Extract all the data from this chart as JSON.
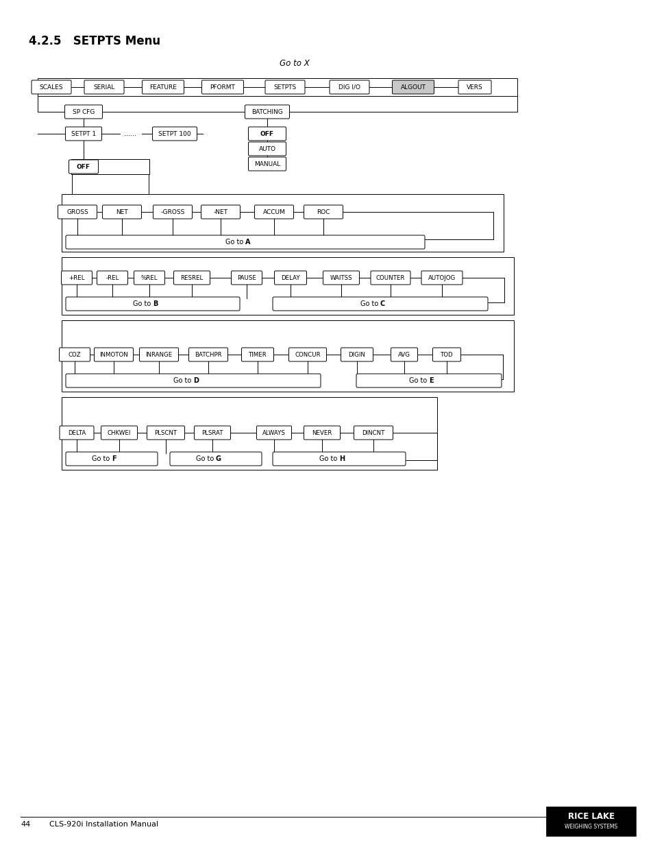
{
  "title": "4.2.5   SETPTS Menu",
  "goto_x_label": "Go to X",
  "bg_color": "#ffffff",
  "title_fontsize": 12,
  "row1_items": [
    "SCALES",
    "SERIAL",
    "FEATURE",
    "PFORMT",
    "SETPTS",
    "DIG I/O",
    "ALGOUT",
    "VERS"
  ],
  "row1_highlight": "ALGOUT",
  "batching_sub": [
    "OFF",
    "AUTO",
    "MANUAL"
  ],
  "row_gross": [
    "GROSS",
    "NET",
    "-GROSS",
    "-NET",
    "ACCUM",
    "ROC"
  ],
  "row_rel": [
    "+REL",
    "-REL",
    "%REL",
    "RESREL",
    "PAUSE",
    "DELAY",
    "WAITSS",
    "COUNTER",
    "AUTOJOG"
  ],
  "row_coz": [
    "COZ",
    "INMOTON",
    "INRANGE",
    "BATCHPR",
    "TIMER",
    "CONCUR",
    "DIGIN",
    "AVG",
    "TOD"
  ],
  "row_delta": [
    "DELTA",
    "CHKWEI",
    "PLSCNT",
    "PLSRAT",
    "ALWAYS",
    "NEVER",
    "DINCNT"
  ],
  "footer_page": "44",
  "footer_text": "CLS-920i Installation Manual"
}
